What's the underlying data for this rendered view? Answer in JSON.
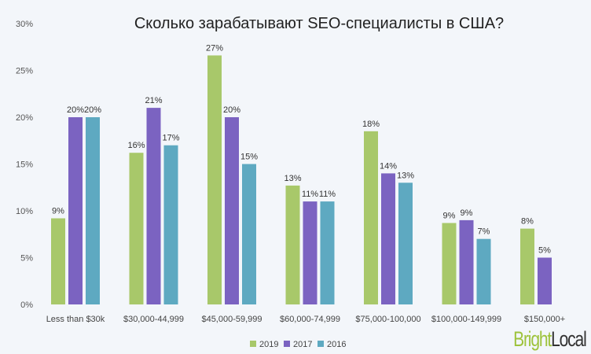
{
  "chart_data": {
    "type": "bar",
    "title": "Сколько зарабатывают SEO-специалисты в США?",
    "categories": [
      "Less than $30k",
      "$30,000-44,999",
      "$45,000-59,999",
      "$60,000-74,999",
      "$75,000-100,000",
      "$100,000-149,999",
      "$150,000+"
    ],
    "series": [
      {
        "name": "2019",
        "color": "#a8c86a",
        "values": [
          9.2,
          16.2,
          26.6,
          12.7,
          18.5,
          8.7,
          8.1
        ],
        "labels": [
          "9%",
          "16%",
          "27%",
          "13%",
          "18%",
          "9%",
          "8%"
        ]
      },
      {
        "name": "2017",
        "color": "#7b63c1",
        "values": [
          20,
          21,
          20,
          11,
          14,
          9,
          5
        ],
        "labels": [
          "20%",
          "21%",
          "20%",
          "11%",
          "14%",
          "9%",
          "5%"
        ]
      },
      {
        "name": "2016",
        "color": "#5ea9c1",
        "values": [
          20,
          17,
          15,
          11,
          13,
          7,
          null
        ],
        "labels": [
          "20%",
          "17%",
          "15%",
          "11%",
          "13%",
          "7%",
          ""
        ]
      }
    ],
    "ylim": [
      0,
      30
    ],
    "yticks": [
      "0%",
      "5%",
      "10%",
      "15%",
      "20%",
      "25%",
      "30%"
    ],
    "grid": false,
    "legend_position": "bottom"
  },
  "logo": {
    "part1": "Bright",
    "part2": "Local"
  }
}
